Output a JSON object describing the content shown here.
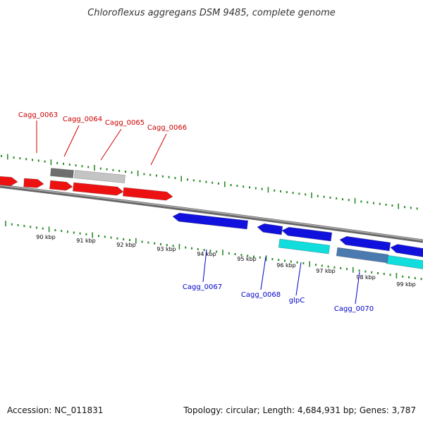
{
  "title": "Chloroflexus aggregans DSM 9485, complete genome",
  "footer": {
    "accession": "Accession: NC_011831",
    "summary": "Topology: circular; Length: 4,684,931 bp; Genes: 3,787"
  },
  "colors": {
    "tick": "#2a8a2a",
    "backbone": "#888888",
    "forward_gene": "#ee1111",
    "reverse_gene": "#1111dd",
    "forward_label": "#cc0000",
    "reverse_label": "#0000cc"
  },
  "scale": {
    "unit": "kbp",
    "labels": [
      {
        "kbp": 90,
        "text": "90 kbp"
      },
      {
        "kbp": 91,
        "text": "91 kbp"
      },
      {
        "kbp": 92,
        "text": "92 kbp"
      },
      {
        "kbp": 93,
        "text": "93 kbp"
      },
      {
        "kbp": 94,
        "text": "94 kbp"
      },
      {
        "kbp": 95,
        "text": "95 kbp"
      },
      {
        "kbp": 96,
        "text": "96 kbp"
      },
      {
        "kbp": 97,
        "text": "97 kbp"
      },
      {
        "kbp": 98,
        "text": "98 kbp"
      },
      {
        "kbp": 99,
        "text": "99 kbp"
      }
    ]
  },
  "gene_labels": {
    "forward": [
      "Cagg_0063",
      "Cagg_0064",
      "Cagg_0065",
      "Cagg_0066"
    ],
    "reverse": [
      "Cagg_0067",
      "Cagg_0068",
      "glpC",
      "Cagg_0070"
    ]
  }
}
